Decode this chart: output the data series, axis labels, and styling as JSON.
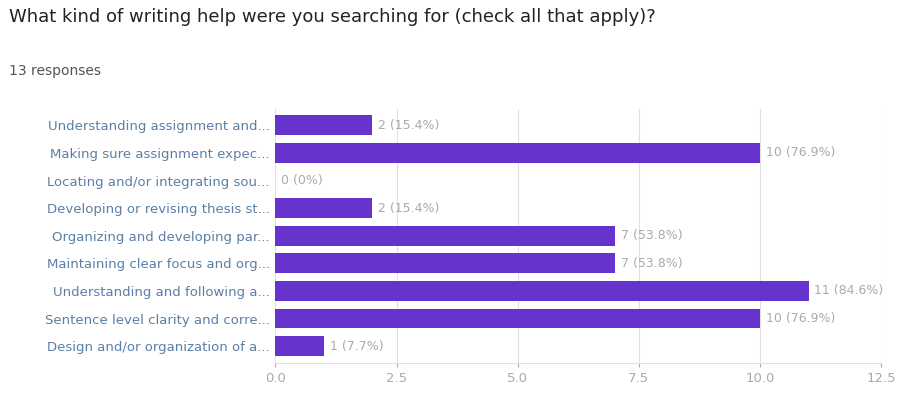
{
  "title": "What kind of writing help were you searching for (check all that apply)?",
  "subtitle": "13 responses",
  "categories": [
    "Understanding assignment and...",
    "Making sure assignment expec...",
    "Locating and/or integrating sou...",
    "Developing or revising thesis st...",
    "Organizing and developing par...",
    "Maintaining clear focus and org...",
    "Understanding and following a...",
    "Sentence level clarity and corre...",
    "Design and/or organization of a..."
  ],
  "values": [
    2,
    10,
    0,
    2,
    7,
    7,
    11,
    10,
    1
  ],
  "labels": [
    "2 (15.4%)",
    "10 (76.9%)",
    "0 (0%)",
    "2 (15.4%)",
    "7 (53.8%)",
    "7 (53.8%)",
    "11 (84.6%)",
    "10 (76.9%)",
    "1 (7.7%)"
  ],
  "bar_color": "#6633cc",
  "label_color": "#aaaaaa",
  "title_color": "#222222",
  "subtitle_color": "#555555",
  "ylabel_color": "#5b7fa6",
  "background_color": "#ffffff",
  "grid_color": "#e0e0e0",
  "xlim": [
    0,
    12.5
  ],
  "xticks": [
    0.0,
    2.5,
    5.0,
    7.5,
    10.0,
    12.5
  ],
  "title_fontsize": 13,
  "subtitle_fontsize": 10,
  "bar_height": 0.72,
  "label_fontsize": 9,
  "tick_fontsize": 9.5
}
